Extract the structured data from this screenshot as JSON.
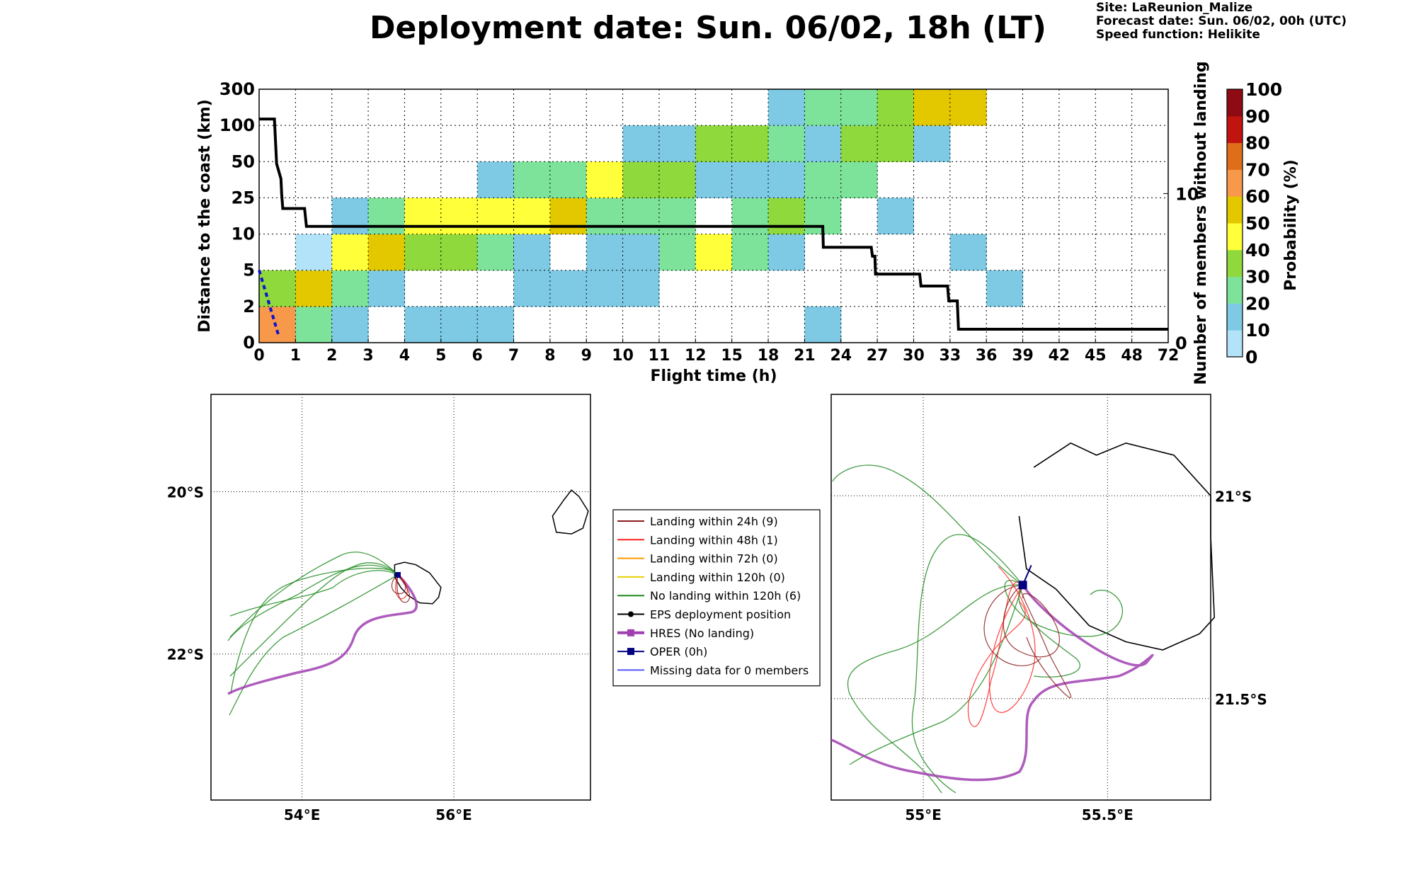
{
  "title": "Deployment date: Sun. 06/02, 18h (LT)",
  "site_info": {
    "site": "Site: LaReunion_Malize",
    "forecast": "Forecast date: Sun. 06/02, 00h (UTC)",
    "speed": "Speed function: Helikite"
  },
  "chart_data": [
    {
      "type": "heatmap",
      "xlabel": "Flight time (h)",
      "ylabel": "Distance to the coast (km)",
      "y2label": "Number of members without landing",
      "x_ticks": [
        "0",
        "1",
        "2",
        "3",
        "4",
        "5",
        "6",
        "7",
        "8",
        "9",
        "10",
        "11",
        "12",
        "15",
        "18",
        "21",
        "24",
        "27",
        "30",
        "33",
        "36",
        "39",
        "42",
        "45",
        "48",
        "72"
      ],
      "y_ticks": [
        "0",
        "2",
        "5",
        "10",
        "25",
        "50",
        "100",
        "300"
      ],
      "y2_ticks": [
        "0",
        "10"
      ],
      "colorbar": {
        "label": "Probability (%)",
        "ticks": [
          "0",
          "10",
          "20",
          "30",
          "40",
          "50",
          "60",
          "70",
          "80",
          "90",
          "100"
        ],
        "colors": [
          "#b3e3f8",
          "#7ecae4",
          "#7de39b",
          "#8fd93d",
          "#ffff3a",
          "#e3c800",
          "#f7984b",
          "#e06d1a",
          "#c2140f",
          "#8e0b14"
        ]
      },
      "cells": [
        [
          0,
          0,
          6
        ],
        [
          1,
          0,
          2
        ],
        [
          2,
          0,
          1
        ],
        [
          4,
          0,
          1
        ],
        [
          5,
          0,
          1
        ],
        [
          6,
          0,
          1
        ],
        [
          15,
          0,
          1
        ],
        [
          0,
          1,
          3
        ],
        [
          1,
          1,
          5
        ],
        [
          2,
          1,
          2
        ],
        [
          3,
          1,
          1
        ],
        [
          7,
          1,
          1
        ],
        [
          8,
          1,
          1
        ],
        [
          9,
          1,
          1
        ],
        [
          10,
          1,
          1
        ],
        [
          20,
          1,
          1
        ],
        [
          1,
          2,
          0
        ],
        [
          2,
          2,
          4
        ],
        [
          3,
          2,
          5
        ],
        [
          4,
          2,
          3
        ],
        [
          5,
          2,
          3
        ],
        [
          6,
          2,
          2
        ],
        [
          7,
          2,
          1
        ],
        [
          9,
          2,
          1
        ],
        [
          10,
          2,
          1
        ],
        [
          11,
          2,
          2
        ],
        [
          12,
          2,
          4
        ],
        [
          13,
          2,
          2
        ],
        [
          14,
          2,
          1
        ],
        [
          19,
          2,
          1
        ],
        [
          2,
          3,
          1
        ],
        [
          3,
          3,
          2
        ],
        [
          4,
          3,
          4
        ],
        [
          5,
          3,
          4
        ],
        [
          6,
          3,
          4
        ],
        [
          7,
          3,
          4
        ],
        [
          8,
          3,
          5
        ],
        [
          9,
          3,
          2
        ],
        [
          10,
          3,
          2
        ],
        [
          11,
          3,
          2
        ],
        [
          13,
          3,
          2
        ],
        [
          14,
          3,
          3
        ],
        [
          15,
          3,
          2
        ],
        [
          17,
          3,
          1
        ],
        [
          6,
          4,
          1
        ],
        [
          7,
          4,
          2
        ],
        [
          8,
          4,
          2
        ],
        [
          9,
          4,
          4
        ],
        [
          10,
          4,
          3
        ],
        [
          11,
          4,
          3
        ],
        [
          12,
          4,
          1
        ],
        [
          13,
          4,
          1
        ],
        [
          14,
          4,
          1
        ],
        [
          15,
          4,
          2
        ],
        [
          16,
          4,
          2
        ],
        [
          10,
          5,
          1
        ],
        [
          11,
          5,
          1
        ],
        [
          12,
          5,
          3
        ],
        [
          13,
          5,
          3
        ],
        [
          14,
          5,
          2
        ],
        [
          15,
          5,
          1
        ],
        [
          16,
          5,
          3
        ],
        [
          17,
          5,
          3
        ],
        [
          18,
          5,
          1
        ],
        [
          14,
          6,
          1
        ],
        [
          15,
          6,
          2
        ],
        [
          16,
          6,
          2
        ],
        [
          17,
          6,
          3
        ],
        [
          18,
          6,
          5
        ],
        [
          19,
          6,
          5
        ]
      ],
      "members_without_landing": [
        [
          0,
          15
        ],
        [
          0.42,
          15
        ],
        [
          0.48,
          12
        ],
        [
          0.6,
          11
        ],
        [
          0.62,
          10
        ],
        [
          0.65,
          9
        ],
        [
          1.25,
          9
        ],
        [
          1.3,
          7.8
        ],
        [
          22.5,
          7.8
        ],
        [
          22.55,
          6.4
        ],
        [
          26.5,
          6.4
        ],
        [
          26.6,
          5.8
        ],
        [
          26.8,
          5.8
        ],
        [
          26.85,
          4.6
        ],
        [
          30.5,
          4.6
        ],
        [
          30.6,
          3.8
        ],
        [
          32.8,
          3.8
        ],
        [
          32.9,
          2.8
        ],
        [
          33.6,
          2.8
        ],
        [
          33.7,
          0.9
        ],
        [
          72,
          0.9
        ]
      ],
      "y2_range": [
        0,
        17
      ],
      "extra_series": [
        {
          "style": "blue-dashed",
          "points": [
            [
              0,
              5
            ],
            [
              0.55,
              0.3
            ]
          ]
        }
      ]
    },
    {
      "type": "map",
      "lon_range": [
        52.8,
        57.8
      ],
      "lat_range": [
        -23.8,
        -18.8
      ],
      "lat_ticks": [
        "20°S",
        "22°S"
      ],
      "lon_ticks": [
        "54°E",
        "56°E"
      ],
      "islands": [
        {
          "name": "Reunion",
          "outline": [
            [
              55.22,
              -20.9
            ],
            [
              55.35,
              -20.87
            ],
            [
              55.5,
              -20.9
            ],
            [
              55.68,
              -21.0
            ],
            [
              55.83,
              -21.18
            ],
            [
              55.8,
              -21.3
            ],
            [
              55.72,
              -21.38
            ],
            [
              55.55,
              -21.37
            ],
            [
              55.4,
              -21.28
            ],
            [
              55.3,
              -21.18
            ],
            [
              55.22,
              -21.05
            ]
          ]
        },
        {
          "name": "Mauritius",
          "outline": [
            [
              57.55,
              -19.98
            ],
            [
              57.65,
              -20.06
            ],
            [
              57.77,
              -20.24
            ],
            [
              57.7,
              -20.45
            ],
            [
              57.55,
              -20.52
            ],
            [
              57.35,
              -20.5
            ],
            [
              57.3,
              -20.3
            ],
            [
              57.45,
              -20.1
            ]
          ]
        }
      ]
    },
    {
      "type": "map",
      "lon_range": [
        54.75,
        55.78
      ],
      "lat_range": [
        -21.75,
        -20.75
      ],
      "lat_ticks": [
        "21°S",
        "21.5°S"
      ],
      "lon_ticks": [
        "55°E",
        "55.5°E"
      ],
      "island_outline": [
        [
          55.3,
          -20.93
        ],
        [
          55.4,
          -20.87
        ],
        [
          55.47,
          -20.9
        ],
        [
          55.55,
          -20.87
        ],
        [
          55.68,
          -20.9
        ],
        [
          55.78,
          -21.0
        ],
        [
          55.78,
          -21.1
        ],
        [
          55.79,
          -21.3
        ],
        [
          55.75,
          -21.34
        ],
        [
          55.65,
          -21.38
        ],
        [
          55.55,
          -21.36
        ],
        [
          55.45,
          -21.32
        ],
        [
          55.36,
          -21.23
        ],
        [
          55.28,
          -21.18
        ],
        [
          55.26,
          -21.05
        ]
      ],
      "deploy_point": [
        55.27,
        -21.22
      ]
    }
  ],
  "legend": [
    {
      "label": "Landing within 24h (9)",
      "color": "#8b1a1a"
    },
    {
      "label": "Landing within 48h (1)",
      "color": "#ff2020"
    },
    {
      "label": "Landing within 72h (0)",
      "color": "#ff9900"
    },
    {
      "label": "Landing within 120h (0)",
      "color": "#e8d000"
    },
    {
      "label": "No landing within 120h (6)",
      "color": "#1f8a1f"
    },
    {
      "label": "EPS deployment position",
      "color": "#000000"
    },
    {
      "label": "HRES (No landing)",
      "color": "#a040b0"
    },
    {
      "label": "OPER (0h)",
      "color": "#000080"
    },
    {
      "label": "Missing data for 0 members",
      "color": "#5555ff"
    }
  ]
}
